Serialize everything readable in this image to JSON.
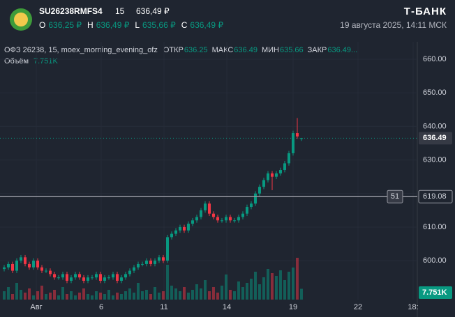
{
  "header": {
    "ticker": "SU26238RMFS4",
    "interval": "15",
    "price": "636,49 ₽",
    "ohlc": [
      {
        "key": "O",
        "value": "636,25 ₽"
      },
      {
        "key": "H",
        "value": "636,49 ₽"
      },
      {
        "key": "L",
        "value": "635,66 ₽"
      },
      {
        "key": "C",
        "value": "636,49 ₽"
      }
    ],
    "brand": "Т-БАНК",
    "datetime": "19 августа 2025, 14:11 МСК"
  },
  "chart_data": {
    "type": "candlestick",
    "legend_title": "ОФЗ 26238, 15, moex_morning_evening_ofz",
    "legend_items": [
      {
        "key": "ОТКР",
        "value": "636.25"
      },
      {
        "key": "МАКС",
        "value": "636.49"
      },
      {
        "key": "МИН",
        "value": "635.66"
      },
      {
        "key": "ЗАКР",
        "value": "636.49..."
      }
    ],
    "volume_title": "Объём",
    "volume_label": "7.751K",
    "up_color": "#089981",
    "down_color": "#f23645",
    "x": [
      0,
      1,
      2,
      3,
      4,
      5,
      6,
      7,
      8,
      9,
      10,
      11,
      12,
      13,
      14,
      15,
      16,
      17,
      18,
      19,
      20,
      21,
      22,
      23,
      24,
      25,
      26,
      27,
      28,
      29,
      30,
      31,
      32,
      33,
      34,
      35,
      36,
      37,
      38,
      39,
      40,
      41,
      42,
      43,
      44,
      45,
      46,
      47,
      48,
      49,
      50,
      51,
      52,
      53,
      54,
      55,
      56,
      57,
      58,
      59,
      60,
      61,
      62,
      63,
      64,
      65,
      66,
      67,
      68,
      69,
      70,
      71
    ],
    "open": [
      597.5,
      598,
      599,
      597,
      600,
      601,
      599,
      598,
      600,
      598,
      597,
      597,
      596,
      595,
      595,
      596,
      594,
      595,
      596,
      595,
      594,
      595,
      595,
      596,
      594,
      595,
      595,
      596,
      594,
      595,
      596,
      597,
      598,
      599,
      599,
      600,
      599,
      600,
      601,
      600,
      607,
      608,
      609,
      610,
      609,
      611,
      612,
      613,
      615,
      617,
      614,
      613,
      612,
      612,
      613,
      612,
      612,
      613,
      614,
      616,
      617,
      620,
      622,
      624,
      626,
      625,
      626,
      627,
      629,
      632,
      638,
      636.25
    ],
    "high": [
      598.7,
      599.7,
      599.7,
      600.7,
      601.7,
      601.7,
      599.7,
      600.7,
      600.7,
      598.7,
      597.7,
      597.7,
      596.7,
      595.7,
      596.7,
      596.7,
      595.7,
      596.7,
      596.7,
      595.7,
      595.7,
      595.7,
      596.7,
      596.7,
      595.7,
      595.7,
      596.7,
      596.7,
      595.7,
      596.7,
      597.7,
      598.7,
      599.7,
      599.7,
      600.7,
      600.7,
      600.7,
      601.7,
      601.7,
      607.7,
      608.7,
      609.7,
      610.7,
      610.7,
      611.7,
      612.7,
      613.7,
      615.7,
      617.7,
      617.7,
      614.7,
      613.7,
      612.7,
      613.7,
      613.7,
      612.7,
      613.7,
      614.7,
      616.7,
      617.7,
      620.7,
      622.7,
      624.7,
      626.7,
      626.7,
      626.7,
      627.7,
      629.7,
      632.7,
      638.7,
      642.5,
      636.49
    ],
    "low": [
      596.8,
      597.3,
      596.3,
      596.3,
      599.3,
      598.3,
      597.3,
      597.3,
      597.3,
      596.3,
      596.3,
      595.3,
      594.3,
      594.3,
      594.3,
      593.3,
      593.3,
      594.3,
      594.3,
      593.3,
      593.3,
      594.3,
      594.3,
      593.3,
      593.3,
      594.3,
      594.3,
      593.3,
      593.3,
      594.3,
      595.3,
      596.3,
      597.3,
      598.3,
      598.3,
      598.3,
      598.3,
      599.3,
      599.3,
      599.3,
      606.3,
      607.3,
      608.3,
      608.3,
      608.3,
      610.3,
      611.3,
      612.3,
      614.3,
      613.3,
      612.3,
      611.3,
      611.3,
      611.3,
      611.3,
      611.3,
      611.3,
      612.3,
      613.3,
      615.3,
      616.3,
      619.3,
      621.3,
      623.3,
      621,
      624.3,
      625.3,
      626.3,
      628.3,
      631.3,
      636.3,
      635.66
    ],
    "close": [
      598,
      599,
      597,
      600,
      601,
      599,
      598,
      600,
      598,
      597,
      597,
      596,
      595,
      595,
      596,
      594,
      595,
      596,
      595,
      594,
      595,
      595,
      596,
      594,
      595,
      595,
      596,
      594,
      595,
      596,
      597,
      598,
      599,
      599,
      600,
      599,
      600,
      601,
      600,
      607,
      608,
      609,
      610,
      609,
      611,
      612,
      613,
      615,
      617,
      614,
      613,
      612,
      612,
      613,
      612,
      612,
      613,
      614,
      616,
      617,
      620,
      622,
      624,
      626,
      625,
      626,
      627,
      629,
      632,
      638,
      637,
      636.49
    ],
    "volume": [
      6,
      9,
      4,
      12,
      7,
      5,
      8,
      3,
      6,
      10,
      4,
      5,
      7,
      3,
      9,
      4,
      6,
      3,
      5,
      8,
      4,
      3,
      6,
      5,
      4,
      7,
      3,
      5,
      4,
      6,
      8,
      5,
      12,
      6,
      7,
      4,
      9,
      5,
      6,
      25,
      10,
      8,
      6,
      9,
      5,
      7,
      11,
      8,
      14,
      6,
      9,
      5,
      10,
      18,
      7,
      6,
      13,
      9,
      12,
      15,
      20,
      11,
      16,
      22,
      19,
      17,
      21,
      14,
      20,
      23,
      30,
      7.751
    ],
    "vlim": [
      0,
      40
    ],
    "xlim": [
      -1,
      98.67
    ],
    "ylim": [
      588.4,
      665.2
    ],
    "xticks": [
      {
        "value": 7.67,
        "label": "Авг"
      },
      {
        "value": 23.17,
        "label": "6"
      },
      {
        "value": 38.17,
        "label": "11"
      },
      {
        "value": 53.17,
        "label": "14"
      },
      {
        "value": 69,
        "label": "19"
      },
      {
        "value": 84.5,
        "label": "22"
      },
      {
        "value": 97.67,
        "label": "18:"
      }
    ],
    "yticks": [
      {
        "value": 600,
        "label": "600.00"
      },
      {
        "value": 610,
        "label": "610.00"
      },
      {
        "value": 620,
        "label": "620.00"
      },
      {
        "value": 630,
        "label": "630.00"
      },
      {
        "value": 640,
        "label": "640.00"
      },
      {
        "value": 650,
        "label": "650.00"
      },
      {
        "value": 660,
        "label": "660.00"
      }
    ],
    "grid": true,
    "last_price": 636.49,
    "price_line": {
      "value": 619.08,
      "label": "51"
    }
  }
}
